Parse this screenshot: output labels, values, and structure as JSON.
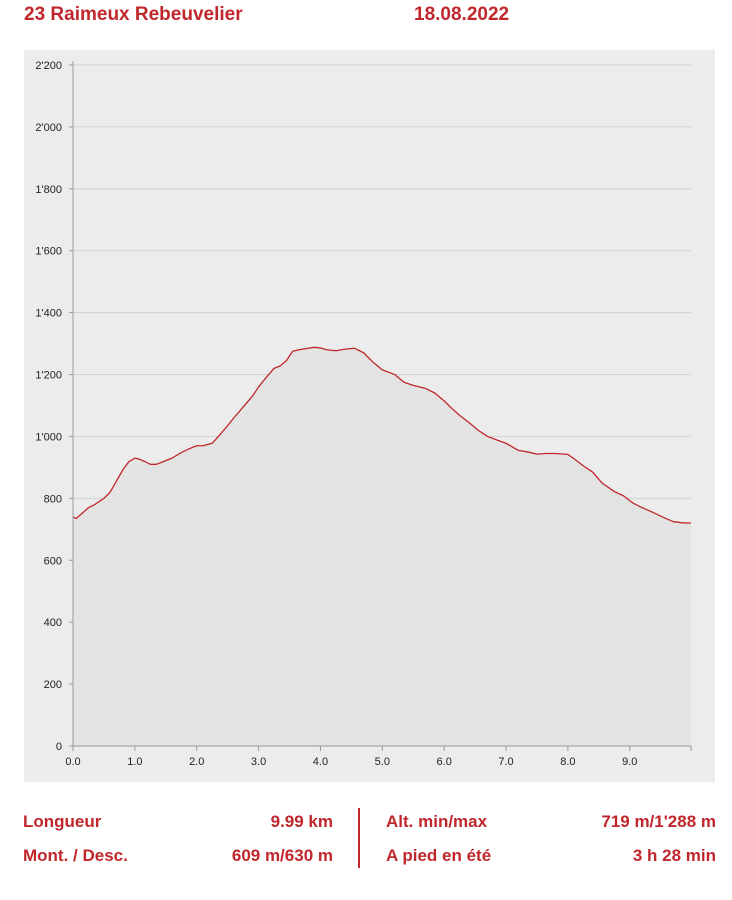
{
  "header": {
    "title": "23 Raimeux Rebeuvelier",
    "date": "18.08.2022"
  },
  "chart_data": {
    "type": "area",
    "title": "",
    "xlabel": "",
    "ylabel": "",
    "xlim": [
      0,
      9.99
    ],
    "ylim": [
      0,
      2200
    ],
    "x_ticks": [
      0,
      1,
      2,
      3,
      4,
      5,
      6,
      7,
      8,
      9
    ],
    "x_tick_labels": [
      "0.0",
      "1.0",
      "2.0",
      "3.0",
      "4.0",
      "5.0",
      "6.0",
      "7.0",
      "8.0",
      "9.0"
    ],
    "y_ticks": [
      0,
      200,
      400,
      600,
      800,
      1000,
      1200,
      1400,
      1600,
      1800,
      2000,
      2200
    ],
    "y_tick_labels": [
      "0",
      "200",
      "400",
      "600",
      "800",
      "1'000",
      "1'200",
      "1'400",
      "1'600",
      "1'800",
      "2'000",
      "2'200"
    ],
    "grid": true,
    "colors": {
      "line": "#c0272d",
      "fill": "#e3e3e3",
      "background": "#ececec",
      "grid": "#d2d2d2",
      "axis": "#9a9a9a"
    },
    "series": [
      {
        "x": [
          0.0,
          0.05,
          0.15,
          0.25,
          0.35,
          0.5,
          0.6,
          0.7,
          0.8,
          0.9,
          1.0,
          1.05,
          1.15,
          1.25,
          1.35,
          1.45,
          1.6,
          1.75,
          1.9,
          2.0,
          2.1,
          2.25,
          2.35,
          2.5,
          2.6,
          2.75,
          2.9,
          3.0,
          3.1,
          3.25,
          3.35,
          3.45,
          3.55,
          3.65,
          3.8,
          3.9,
          4.0,
          4.1,
          4.25,
          4.4,
          4.55,
          4.7,
          4.85,
          5.0,
          5.2,
          5.35,
          5.5,
          5.7,
          5.85,
          6.0,
          6.1,
          6.25,
          6.4,
          6.55,
          6.7,
          6.9,
          7.0,
          7.2,
          7.35,
          7.5,
          7.65,
          7.8,
          8.0,
          8.1,
          8.25,
          8.4,
          8.55,
          8.75,
          8.9,
          9.05,
          9.2,
          9.35,
          9.55,
          9.7,
          9.85,
          9.99
        ],
        "y": [
          740,
          735,
          752,
          770,
          780,
          800,
          820,
          855,
          890,
          918,
          930,
          928,
          920,
          910,
          910,
          918,
          930,
          948,
          962,
          970,
          970,
          978,
          1000,
          1035,
          1060,
          1095,
          1130,
          1160,
          1185,
          1220,
          1228,
          1245,
          1275,
          1280,
          1285,
          1288,
          1286,
          1280,
          1277,
          1282,
          1285,
          1270,
          1240,
          1215,
          1200,
          1175,
          1165,
          1155,
          1140,
          1115,
          1095,
          1068,
          1045,
          1020,
          1000,
          985,
          978,
          955,
          950,
          943,
          945,
          945,
          942,
          928,
          905,
          885,
          850,
          822,
          808,
          785,
          770,
          757,
          738,
          725,
          721,
          720
        ]
      }
    ]
  },
  "stats": {
    "length_label": "Longueur",
    "length_value": "9.99 km",
    "updown_label": "Mont. / Desc.",
    "updown_value": "609 m/630 m",
    "alt_label": "Alt. min/max",
    "alt_value": "719 m/1'288 m",
    "walk_label": "A pied en été",
    "walk_value": "3 h 28 min"
  }
}
